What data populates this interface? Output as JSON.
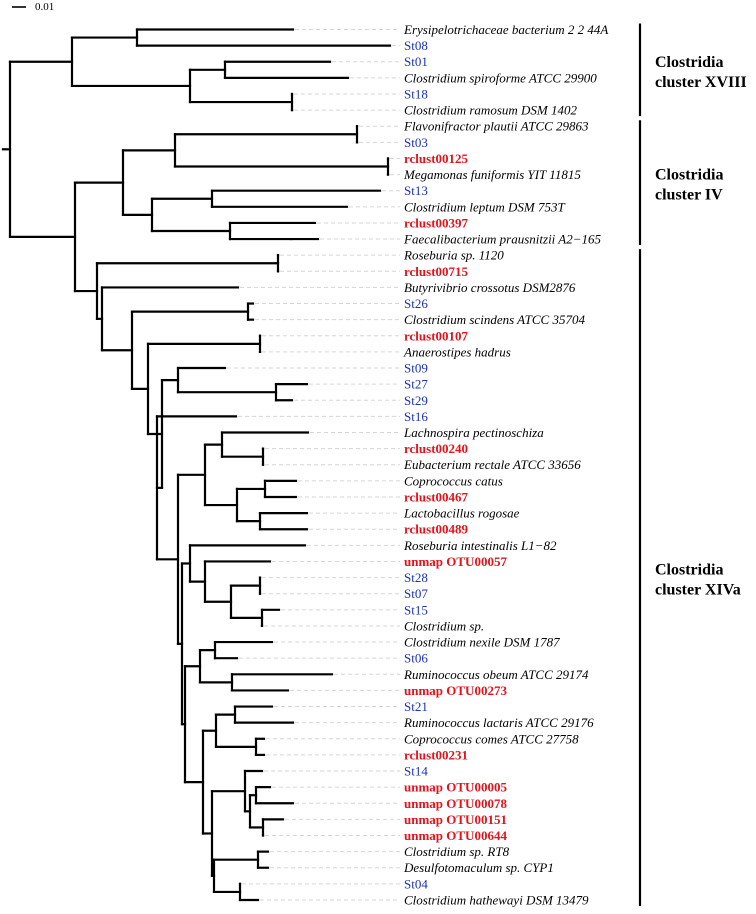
{
  "scale_bar": {
    "label": "0.01"
  },
  "colors": {
    "branch": "#000000",
    "reference": "#000000",
    "st": "#1a32b4",
    "rclust": "#e0141c"
  },
  "tips": [
    {
      "label": "Erysipelotrichaceae bacterium 2 2 44A",
      "kind": "ref"
    },
    {
      "label": "St08",
      "kind": "st"
    },
    {
      "label": "St01",
      "kind": "st"
    },
    {
      "label": "Clostridium spiroforme ATCC 29900",
      "kind": "ref"
    },
    {
      "label": "St18",
      "kind": "st"
    },
    {
      "label": "Clostridium ramosum DSM 1402",
      "kind": "ref"
    },
    {
      "label": "Flavonifractor plautii ATCC 29863",
      "kind": "ref"
    },
    {
      "label": "St03",
      "kind": "st"
    },
    {
      "label": "rclust00125",
      "kind": "new"
    },
    {
      "label": "Megamonas funiformis YIT 11815",
      "kind": "ref"
    },
    {
      "label": "St13",
      "kind": "st"
    },
    {
      "label": "Clostridium leptum DSM 753T",
      "kind": "ref"
    },
    {
      "label": "rclust00397",
      "kind": "new"
    },
    {
      "label": "Faecalibacterium prausnitzii A2−165",
      "kind": "ref"
    },
    {
      "label": "Roseburia sp. 1120",
      "kind": "ref"
    },
    {
      "label": "rclust00715",
      "kind": "new"
    },
    {
      "label": "Butyrivibrio crossotus DSM2876",
      "kind": "ref"
    },
    {
      "label": "St26",
      "kind": "st"
    },
    {
      "label": "Clostridium scindens ATCC 35704",
      "kind": "ref"
    },
    {
      "label": "rclust00107",
      "kind": "new"
    },
    {
      "label": "Anaerostipes hadrus",
      "kind": "ref"
    },
    {
      "label": "St09",
      "kind": "st"
    },
    {
      "label": "St27",
      "kind": "st"
    },
    {
      "label": "St29",
      "kind": "st"
    },
    {
      "label": "St16",
      "kind": "st"
    },
    {
      "label": "Lachnospira pectinoschiza",
      "kind": "ref"
    },
    {
      "label": "rclust00240",
      "kind": "new"
    },
    {
      "label": "Eubacterium rectale ATCC 33656",
      "kind": "ref"
    },
    {
      "label": "Coprococcus catus",
      "kind": "ref"
    },
    {
      "label": "rclust00467",
      "kind": "new"
    },
    {
      "label": "Lactobacillus rogosae",
      "kind": "ref"
    },
    {
      "label": "rclust00489",
      "kind": "new"
    },
    {
      "label": "Roseburia intestinalis L1−82",
      "kind": "ref"
    },
    {
      "label": "unmap OTU00057",
      "kind": "new"
    },
    {
      "label": "St28",
      "kind": "st"
    },
    {
      "label": "St07",
      "kind": "st"
    },
    {
      "label": "St15",
      "kind": "st"
    },
    {
      "label": "Clostridium sp.",
      "kind": "ref"
    },
    {
      "label": "Clostridium nexile DSM 1787",
      "kind": "ref"
    },
    {
      "label": "St06",
      "kind": "st"
    },
    {
      "label": "Ruminococcus obeum ATCC 29174",
      "kind": "ref"
    },
    {
      "label": "unmap OTU00273",
      "kind": "new"
    },
    {
      "label": "St21",
      "kind": "st"
    },
    {
      "label": "Ruminococcus lactaris ATCC 29176",
      "kind": "ref"
    },
    {
      "label": "Coprococcus comes ATCC 27758",
      "kind": "ref"
    },
    {
      "label": "rclust00231",
      "kind": "new"
    },
    {
      "label": "St14",
      "kind": "st"
    },
    {
      "label": "unmap OTU00005",
      "kind": "new"
    },
    {
      "label": "unmap OTU00078",
      "kind": "new"
    },
    {
      "label": "unmap OTU00151",
      "kind": "new"
    },
    {
      "label": "unmap OTU00644",
      "kind": "new"
    },
    {
      "label": "Clostridium sp. RT8",
      "kind": "ref"
    },
    {
      "label": "Desulfotomaculum sp. CYP1",
      "kind": "ref"
    },
    {
      "label": "St04",
      "kind": "st"
    },
    {
      "label": "Clostridium hathewayi DSM 13479",
      "kind": "ref"
    }
  ],
  "clusters": [
    {
      "line1": "Clostridia",
      "line2": "cluster XVIII"
    },
    {
      "line1": "Clostridia",
      "line2": "cluster IV"
    },
    {
      "line1": "Clostridia",
      "line2": "cluster XIVa"
    }
  ]
}
